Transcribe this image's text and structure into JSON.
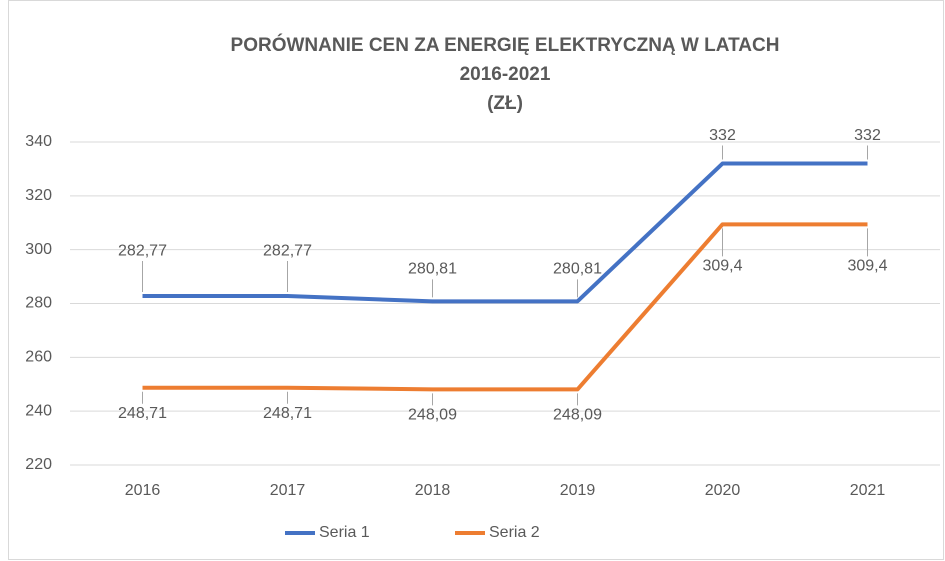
{
  "chart_data": {
    "type": "line",
    "title_lines": [
      "PORÓWNANIE CEN ZA ENERGIĘ ELEKTRYCZNĄ W LATACH",
      "2016-2021",
      "(ZŁ)"
    ],
    "categories": [
      "2016",
      "2017",
      "2018",
      "2019",
      "2020",
      "2021"
    ],
    "series": [
      {
        "name": "Seria 1",
        "color": "#4472c4",
        "values": [
          282.77,
          282.77,
          280.81,
          280.81,
          332,
          332
        ],
        "value_labels": [
          "282,77",
          "282,77",
          "280,81",
          "280,81",
          "332",
          "332"
        ]
      },
      {
        "name": "Seria 2",
        "color": "#ed7d31",
        "values": [
          248.71,
          248.71,
          248.09,
          248.09,
          309.4,
          309.4
        ],
        "value_labels": [
          "248,71",
          "248,71",
          "248,09",
          "248,09",
          "309,4",
          "309,4"
        ]
      }
    ],
    "ylim": [
      220,
      340
    ],
    "yticks": [
      220,
      240,
      260,
      280,
      300,
      320,
      340
    ],
    "grid": true,
    "legend": "bottom"
  }
}
